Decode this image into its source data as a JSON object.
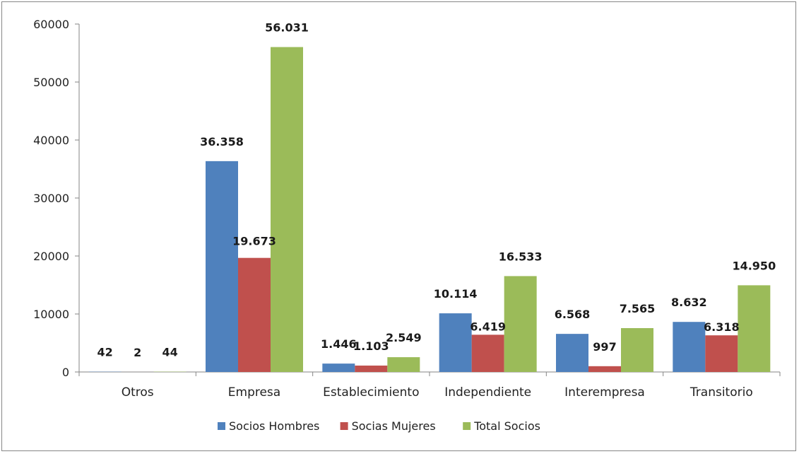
{
  "chart_data": {
    "type": "bar",
    "categories": [
      "Otros",
      "Empresa",
      "Establecimiento",
      "Independiente",
      "Interempresa",
      "Transitorio"
    ],
    "series": [
      {
        "name": "Socios Hombres",
        "color": "#4F81BD",
        "values": [
          42,
          36358,
          1446,
          10114,
          6568,
          8632
        ],
        "labels": [
          "42",
          "36.358",
          "1.446",
          "10.114",
          "6.568",
          "8.632"
        ]
      },
      {
        "name": "Socias Mujeres",
        "color": "#C0504D",
        "values": [
          2,
          19673,
          1103,
          6419,
          997,
          6318
        ],
        "labels": [
          "2",
          "19.673",
          "1.103",
          "6.419",
          "997",
          "6.318"
        ]
      },
      {
        "name": "Total Socios",
        "color": "#9BBB59",
        "values": [
          44,
          56031,
          2549,
          16533,
          7565,
          14950
        ],
        "labels": [
          "44",
          "56.031",
          "2.549",
          "16.533",
          "7.565",
          "14.950"
        ]
      }
    ],
    "yticks": [
      "0",
      "10000",
      "20000",
      "30000",
      "40000",
      "50000",
      "60000"
    ],
    "ylim": [
      0,
      60000
    ],
    "grid": false,
    "legend_position": "bottom"
  }
}
